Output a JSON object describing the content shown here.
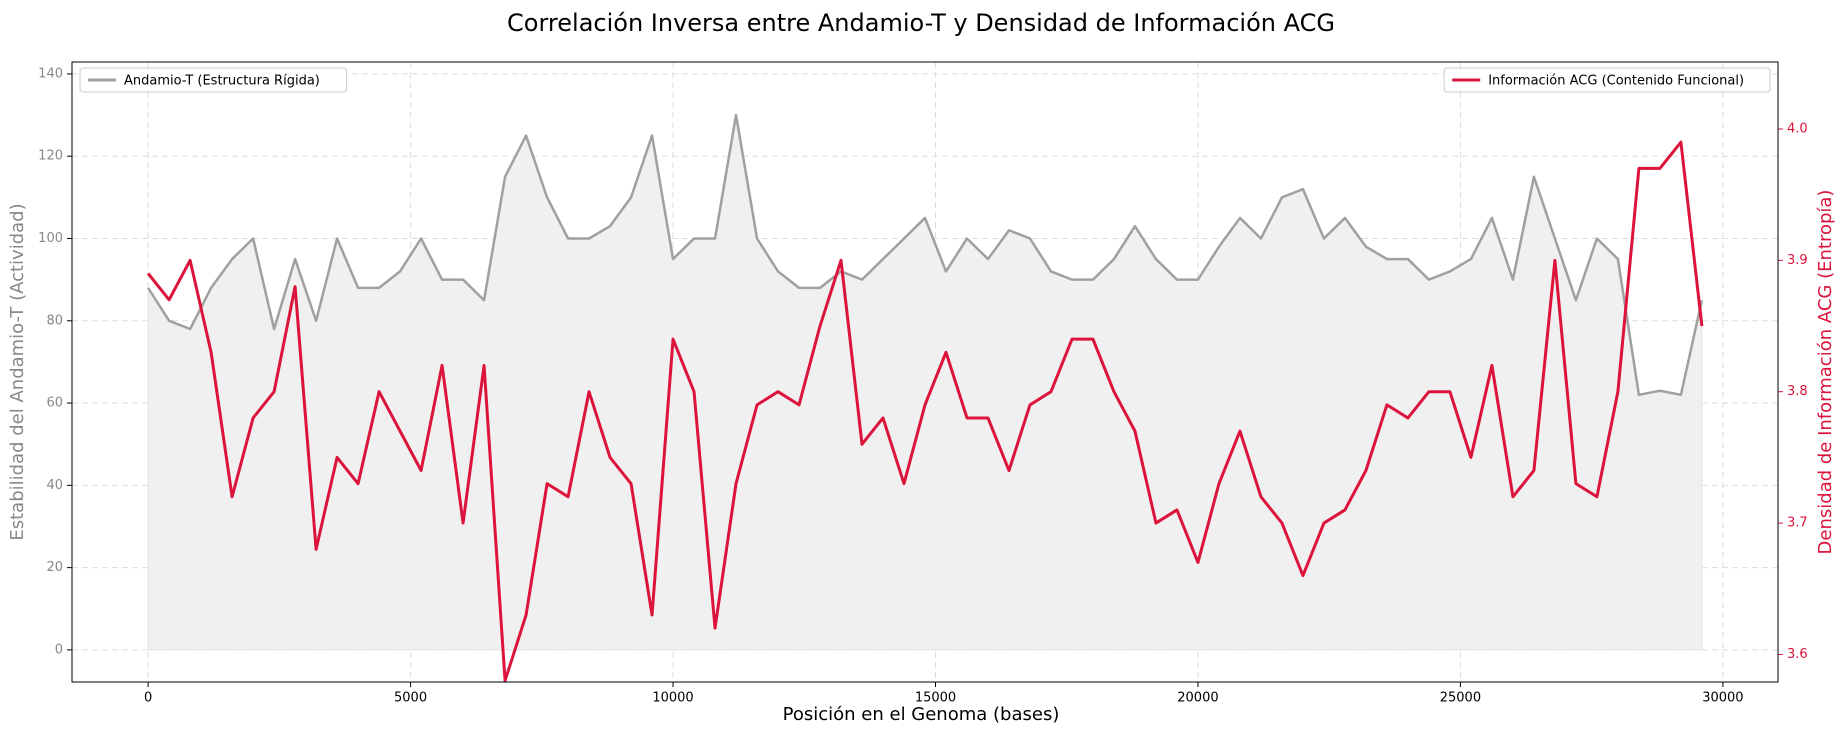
{
  "chart_data": {
    "type": "line",
    "title": "Correlación Inversa entre Andamio-T y Densidad de Información ACG",
    "xlabel": "Posición en el Genoma (bases)",
    "ylabel": "Estabilidad del Andamio-T (Actividad)",
    "y2label": "Densidad de Información ACG (Entropía)",
    "grid": true,
    "xlim": [
      -1450,
      31050
    ],
    "ylim": [
      -7.8,
      142.9
    ],
    "y2lim": [
      3.579,
      4.051
    ],
    "xticks": [
      0,
      5000,
      10000,
      15000,
      20000,
      25000,
      30000
    ],
    "yticks": [
      0,
      20,
      40,
      60,
      80,
      100,
      120,
      140
    ],
    "y2ticks": [
      3.6,
      3.7,
      3.8,
      3.9,
      {
        "value": 4,
        "label": "4.0"
      }
    ],
    "x": [
      0,
      400,
      800,
      1200,
      1600,
      2000,
      2400,
      2800,
      3200,
      3600,
      4000,
      4400,
      4800,
      5200,
      5600,
      6000,
      6400,
      6800,
      7200,
      7600,
      8000,
      8400,
      8800,
      9200,
      9600,
      10000,
      10400,
      10800,
      11200,
      11600,
      12000,
      12400,
      12800,
      13200,
      13600,
      14000,
      14400,
      14800,
      15200,
      15600,
      16000,
      16400,
      16800,
      17200,
      17600,
      18000,
      18400,
      18800,
      19200,
      19600,
      20000,
      20400,
      20800,
      21200,
      21600,
      22000,
      22400,
      22800,
      23200,
      23600,
      24000,
      24400,
      24800,
      25200,
      25600,
      26000,
      26400,
      26800,
      27200,
      27600,
      28000,
      28400,
      28800,
      29200,
      29600
    ],
    "series": [
      {
        "name": "Andamio-T (Estructura Rígida)",
        "color": "#a0a0a0",
        "fill": "#f0f0f0",
        "legend": "upper left",
        "values": [
          88,
          80,
          78,
          88,
          95,
          100,
          78,
          95,
          80,
          100,
          88,
          88,
          92,
          100,
          90,
          90,
          85,
          115,
          125,
          110,
          100,
          100,
          103,
          110,
          125,
          95,
          100,
          100,
          130,
          100,
          92,
          88,
          88,
          92,
          90,
          95,
          100,
          105,
          92,
          100,
          95,
          102,
          100,
          92,
          90,
          90,
          95,
          103,
          95,
          90,
          90,
          98,
          105,
          100,
          110,
          112,
          100,
          105,
          98,
          95,
          95,
          90,
          92,
          95,
          105,
          90,
          115,
          100,
          85,
          100,
          95,
          62,
          63,
          62,
          85
        ]
      },
      {
        "name": "Información ACG (Contenido Funcional)",
        "color": "#dc143c",
        "axis": "y2",
        "legend": "upper right",
        "values": [
          3.89,
          3.87,
          3.9,
          3.83,
          3.72,
          3.78,
          3.8,
          3.88,
          3.68,
          3.75,
          3.73,
          3.8,
          3.77,
          3.74,
          3.82,
          3.7,
          3.82,
          3.58,
          3.63,
          3.73,
          3.72,
          3.8,
          3.75,
          3.73,
          3.63,
          3.84,
          3.8,
          3.62,
          3.73,
          3.79,
          3.8,
          3.79,
          3.85,
          3.9,
          3.76,
          3.78,
          3.73,
          3.79,
          3.83,
          3.78,
          3.78,
          3.74,
          3.79,
          3.8,
          3.84,
          3.84,
          3.8,
          3.77,
          3.7,
          3.71,
          3.67,
          3.73,
          3.77,
          3.72,
          3.7,
          3.66,
          3.7,
          3.71,
          3.74,
          3.79,
          3.78,
          3.8,
          3.8,
          3.75,
          3.82,
          3.72,
          3.74,
          3.9,
          3.73,
          3.72,
          3.8,
          3.97,
          3.97,
          3.99,
          3.85
        ]
      }
    ]
  }
}
